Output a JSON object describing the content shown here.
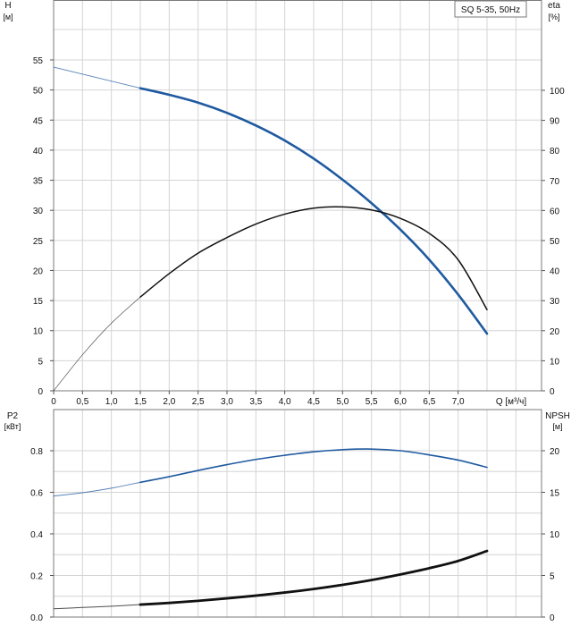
{
  "title_box": "SQ 5-35, 50Hz",
  "chart_data": [
    {
      "type": "line",
      "panel": "head-efficiency",
      "title": "SQ 5-35, 50Hz",
      "xlabel": "Q [м³/ч]",
      "left_axis": {
        "label": "H",
        "unit": "[м]",
        "ylim": [
          0,
          60
        ],
        "ticks": [
          0,
          5,
          10,
          15,
          20,
          25,
          30,
          35,
          40,
          45,
          50,
          55
        ]
      },
      "right_axis": {
        "label": "eta",
        "unit": "[%]",
        "ylim": [
          0,
          120
        ],
        "ticks": [
          0,
          10,
          20,
          30,
          40,
          50,
          60,
          70,
          80,
          90,
          100
        ]
      },
      "xlim": [
        0,
        7.5
      ],
      "x_ticks": [
        "0",
        "0,5",
        "1,0",
        "1,5",
        "2,0",
        "2,5",
        "3,0",
        "3,5",
        "4,0",
        "4,5",
        "5,0",
        "5,5",
        "6,0",
        "6,5",
        "7,0"
      ],
      "grid": true,
      "series": [
        {
          "axis": "left",
          "color": "#1f5aa0",
          "x": [
            0,
            1.5,
            2,
            2.5,
            3,
            3.5,
            4,
            4.5,
            5,
            5.5,
            6,
            6.5,
            7,
            7.5
          ],
          "y": [
            53.8,
            50.3,
            49.2,
            47.9,
            46.2,
            44.1,
            41.6,
            38.6,
            35.1,
            31.2,
            26.8,
            21.8,
            16.0,
            9.5
          ]
        },
        {
          "axis": "right",
          "color": "#111111",
          "x": [
            0,
            0.5,
            1,
            1.5,
            2,
            2.5,
            3,
            3.5,
            4,
            4.5,
            5,
            5.5,
            6,
            6.5,
            7,
            7.5
          ],
          "y": [
            0,
            12,
            22.5,
            31.2,
            39,
            45.8,
            51,
            55.5,
            58.8,
            60.8,
            61.2,
            60.2,
            57.4,
            52.4,
            43.6,
            27
          ]
        }
      ]
    },
    {
      "type": "line",
      "panel": "power-npsh",
      "left_axis": {
        "label": "P2",
        "unit": "[кВт]",
        "ylim": [
          0,
          0.9
        ],
        "ticks": [
          "0.0",
          "0.2",
          "0.4",
          "0.6",
          "0.8"
        ]
      },
      "right_axis": {
        "label": "NPSH",
        "unit": "[м]",
        "ylim": [
          0,
          22.5
        ],
        "ticks": [
          0,
          5,
          10,
          15,
          20
        ]
      },
      "xlim": [
        0,
        7.5
      ],
      "grid": true,
      "series": [
        {
          "axis": "left",
          "color": "#1f5aa0",
          "x": [
            0,
            0.5,
            1,
            1.5,
            2,
            2.5,
            3,
            3.5,
            4,
            4.5,
            5,
            5.5,
            6,
            6.5,
            7,
            7.5
          ],
          "y": [
            0.582,
            0.598,
            0.62,
            0.648,
            0.675,
            0.705,
            0.733,
            0.758,
            0.778,
            0.795,
            0.805,
            0.808,
            0.8,
            0.78,
            0.755,
            0.72
          ]
        },
        {
          "axis": "left",
          "color": "#111111",
          "x": [
            0,
            0.5,
            1,
            1.5,
            2,
            2.5,
            3,
            3.5,
            4,
            4.5,
            5,
            5.5,
            6,
            6.5,
            7,
            7.5
          ],
          "y": [
            0.04,
            0.046,
            0.052,
            0.06,
            0.068,
            0.078,
            0.09,
            0.103,
            0.118,
            0.135,
            0.155,
            0.178,
            0.205,
            0.235,
            0.27,
            0.318
          ]
        }
      ]
    }
  ]
}
